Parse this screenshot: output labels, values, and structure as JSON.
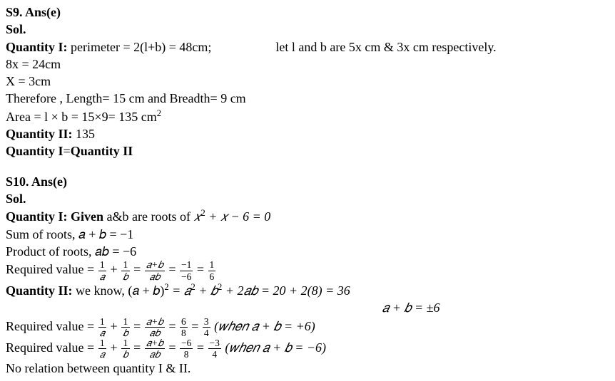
{
  "s9": {
    "heading": "S9. Ans(e)",
    "sol_label": "Sol.",
    "q1_label": "Quantity I:",
    "q1_text_a": " perimeter = 2(l+b) = 48cm;",
    "q1_text_b": "let l and b are 5x cm & 3x cm respectively.",
    "l2": "8x = 24cm",
    "l3": "X = 3cm",
    "l4": "Therefore , Length= 15 cm and Breadth= 9 cm",
    "l5_a": "Area = l × b = 15×9= 135 cm",
    "l5_sup": "2",
    "q2_label": "Quantity II:",
    "q2_text": " 135",
    "eq_a": "Quantity I",
    "eq_mid": "=",
    "eq_b": "Quantity II"
  },
  "s10": {
    "heading": "S10. Ans(e)",
    "sol_label": "Sol.",
    "q1_label": "Quantity I: Given",
    "q1_text_a": " a&b are roots of ",
    "q1_eq_a": "𝑥",
    "q1_eq_sup": "2",
    "q1_eq_b": " + 𝑥 − 6 = 0",
    "sum_roots": "Sum of roots, 𝑎 + 𝑏 = −1",
    "prod_roots": "Product of roots, 𝑎𝑏 = −6",
    "req1_label": "Required value = ",
    "frac1": {
      "num": "1",
      "den": "𝑎"
    },
    "plus": " + ",
    "frac2": {
      "num": "1",
      "den": "𝑏"
    },
    "eq": " = ",
    "frac3": {
      "num": "𝑎+𝑏",
      "den": "𝑎𝑏"
    },
    "frac4": {
      "num": "−1",
      "den": "−6"
    },
    "frac5": {
      "num": "1",
      "den": "6"
    },
    "q2_label": "Quantity II:",
    "q2_text_a": " we know, (𝑎 + 𝑏)",
    "q2_sup": "2",
    "q2_text_b": " = 𝑎",
    "q2_text_c": " + 𝑏",
    "q2_text_d": " + 2𝑎𝑏 = 20 + 2(8) = 36",
    "center": "𝑎 + 𝑏 = ±6",
    "req2_label": "Required value = ",
    "r2_frac1": {
      "num": "1",
      "den": "𝑎"
    },
    "r2_frac2": {
      "num": "1",
      "den": "𝑏"
    },
    "r2_frac3": {
      "num": "𝑎+𝑏",
      "den": "𝑎𝑏"
    },
    "r2_frac4": {
      "num": "6",
      "den": "8"
    },
    "r2_frac5": {
      "num": "3",
      "den": "4"
    },
    "r2_cond": "  (𝑤ℎ𝑒𝑛 𝑎 + 𝑏 = +6)",
    "req3_label": "Required value = ",
    "r3_frac1": {
      "num": "1",
      "den": "𝑎"
    },
    "r3_frac2": {
      "num": "1",
      "den": "𝑏"
    },
    "r3_frac3": {
      "num": "𝑎+𝑏",
      "den": "𝑎𝑏"
    },
    "r3_frac4": {
      "num": "−6",
      "den": "8"
    },
    "r3_frac5": {
      "num": "−3",
      "den": "4"
    },
    "r3_cond": "  (𝑤ℎ𝑒𝑛 𝑎 + 𝑏 = −6)",
    "last": "No relation between quantity I & II."
  }
}
